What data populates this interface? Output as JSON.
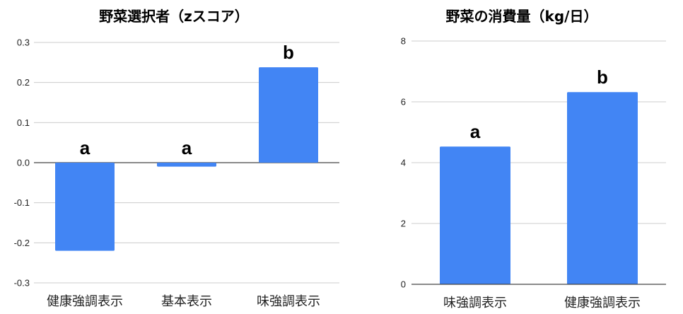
{
  "colors": {
    "bar": "#4285F4",
    "grid": "#cccccc",
    "axis": "#444444"
  },
  "chart_data": [
    {
      "type": "bar",
      "title": "野菜選択者（zスコア）",
      "categories": [
        "健康強調表示",
        "基本表示",
        "味強調表示"
      ],
      "values": [
        -0.22,
        -0.01,
        0.238
      ],
      "significance_letters": [
        "a",
        "a",
        "b"
      ],
      "ylim": [
        -0.3,
        0.3
      ],
      "yticks": [
        -0.3,
        -0.2,
        -0.1,
        0.0,
        0.1,
        0.2,
        0.3
      ],
      "ytick_labels": [
        "-0.3",
        "-0.2",
        "-0.1",
        "0.0",
        "0.1",
        "0.2",
        "0.3"
      ],
      "grid": true
    },
    {
      "type": "bar",
      "title": "野菜の消費量（kg/日）",
      "categories": [
        "味強調表示",
        "健康強調表示"
      ],
      "values": [
        4.53,
        6.32
      ],
      "significance_letters": [
        "a",
        "b"
      ],
      "ylim": [
        0,
        8
      ],
      "yticks": [
        0,
        2,
        4,
        6,
        8
      ],
      "ytick_labels": [
        "0",
        "2",
        "4",
        "6",
        "8"
      ],
      "grid": true
    }
  ]
}
